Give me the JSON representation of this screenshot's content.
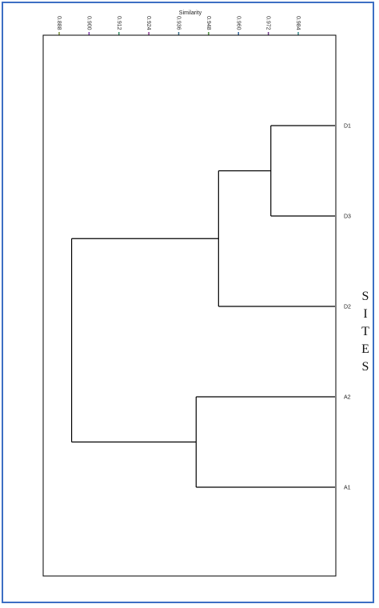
{
  "chart_data": {
    "type": "dendrogram",
    "axis_title": "Similarity",
    "side_label": "SITES",
    "ticks": [
      "0.888",
      "0.900",
      "0.912",
      "0.924",
      "0.936",
      "0.948",
      "0.960",
      "0.972",
      "0.984"
    ],
    "xlim": [
      0.888,
      0.984
    ],
    "leaves": [
      "D1",
      "D3",
      "D2",
      "A2",
      "A1"
    ],
    "merges": [
      {
        "a": "D1",
        "b": "D3",
        "similarity": 0.973
      },
      {
        "a": "D1-D3",
        "b": "D2",
        "similarity": 0.952
      },
      {
        "a": "A2",
        "b": "A1",
        "similarity": 0.943
      },
      {
        "a": "D",
        "b": "A",
        "similarity": 0.893
      }
    ]
  },
  "colors": {
    "frame": "#3d6fc4",
    "lines": "#000000",
    "tick_marks": [
      "#7a8f3a",
      "#7b3aa8",
      "#3a8f6a",
      "#8a3a8f",
      "#3a6f8a",
      "#4a8f3a",
      "#3a6a9f",
      "#6f3a8a",
      "#3a8a8a"
    ]
  }
}
